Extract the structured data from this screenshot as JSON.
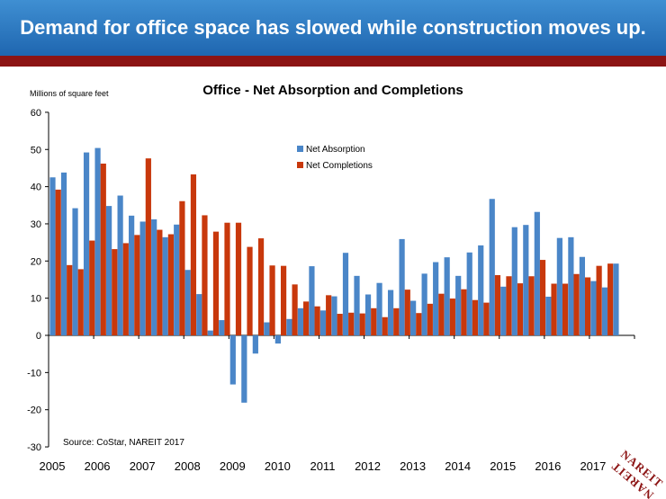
{
  "banner": {
    "title": "Demand for office space has slowed while construction moves up."
  },
  "chart_data": {
    "type": "bar",
    "title": "Office - Net Absorption and Completions",
    "ylabel": "Millions of square feet",
    "xlabel": "",
    "ylim": [
      -30,
      60
    ],
    "yticks": [
      60,
      50,
      40,
      30,
      20,
      10,
      0,
      -10,
      -20,
      -30
    ],
    "x_tick_labels": [
      "2005",
      "2006",
      "2007",
      "2008",
      "2009",
      "2010",
      "2011",
      "2012",
      "2013",
      "2014",
      "2015",
      "2016",
      "2017"
    ],
    "categories": [
      "2005Q1",
      "2005Q2",
      "2005Q3",
      "2005Q4",
      "2006Q1",
      "2006Q2",
      "2006Q3",
      "2006Q4",
      "2007Q1",
      "2007Q2",
      "2007Q3",
      "2007Q4",
      "2008Q1",
      "2008Q2",
      "2008Q3",
      "2008Q4",
      "2009Q1",
      "2009Q2",
      "2009Q3",
      "2009Q4",
      "2010Q1",
      "2010Q2",
      "2010Q3",
      "2010Q4",
      "2011Q1",
      "2011Q2",
      "2011Q3",
      "2011Q4",
      "2012Q1",
      "2012Q2",
      "2012Q3",
      "2012Q4",
      "2013Q1",
      "2013Q2",
      "2013Q3",
      "2013Q4",
      "2014Q1",
      "2014Q2",
      "2014Q3",
      "2014Q4",
      "2015Q1",
      "2015Q2",
      "2015Q3",
      "2015Q4",
      "2016Q1",
      "2016Q2",
      "2016Q3",
      "2016Q4",
      "2017Q1",
      "2017Q2",
      "2017Q3"
    ],
    "series": [
      {
        "name": "Net Absorption",
        "color": "#4a86c8",
        "values": [
          42.5,
          43.8,
          34.2,
          49.2,
          50.4,
          34.8,
          37.6,
          32.2,
          30.6,
          31.2,
          26.4,
          29.8,
          17.6,
          11.1,
          1.3,
          4.1,
          -13.2,
          -18.1,
          -4.9,
          3.5,
          -2.2,
          4.4,
          7.3,
          18.6,
          6.7,
          10.5,
          22.2,
          16.0,
          11.0,
          14.1,
          12.2,
          25.9,
          9.3,
          16.6,
          19.7,
          21.0,
          16.0,
          22.3,
          24.2,
          36.7,
          13.1,
          29.1,
          29.7,
          33.2,
          10.4,
          26.2,
          26.4,
          21.1,
          14.6,
          12.9,
          19.3
        ]
      },
      {
        "name": "Net Completions",
        "color": "#c8380c",
        "values": [
          39.2,
          18.9,
          17.8,
          25.5,
          46.2,
          23.2,
          24.8,
          27.0,
          47.6,
          28.4,
          27.2,
          36.1,
          43.3,
          32.3,
          27.9,
          30.3,
          30.3,
          23.8,
          26.1,
          18.8,
          18.7,
          13.7,
          9.1,
          7.8,
          10.8,
          5.8,
          6.1,
          5.9,
          7.3,
          4.9,
          7.3,
          12.3,
          6.0,
          8.5,
          11.2,
          9.9,
          12.4,
          9.5,
          8.8,
          16.2,
          15.9,
          14.0,
          15.9,
          20.3,
          13.9,
          13.9,
          16.5,
          15.6,
          18.7,
          19.3,
          null
        ]
      }
    ],
    "legend_position": "top-center"
  },
  "annotations": {
    "source": "Source: CoStar, NAREIT 2017"
  },
  "logo": {
    "text": "NAREIT",
    "name": "nareit-logo"
  }
}
